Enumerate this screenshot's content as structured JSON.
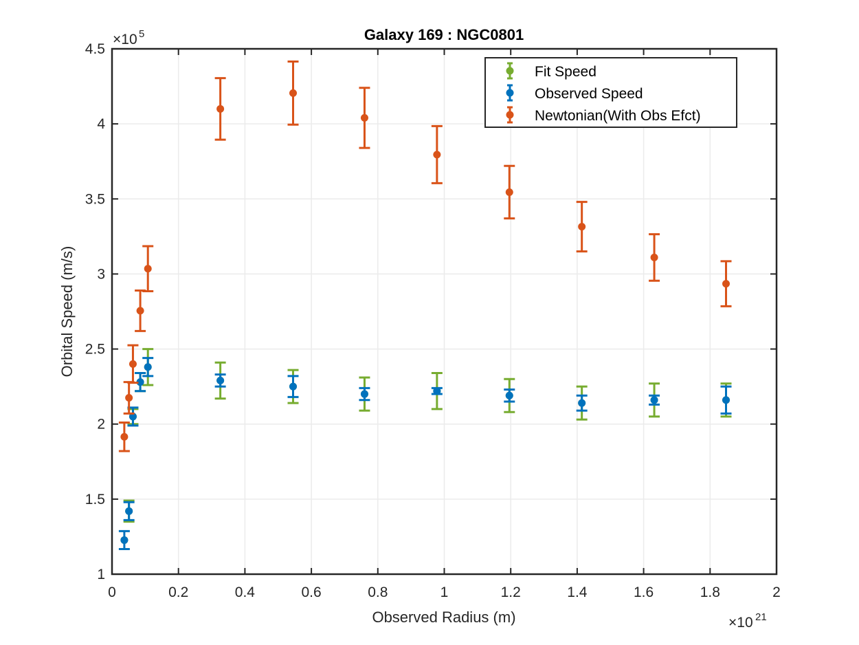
{
  "chart_data": {
    "type": "scatter",
    "title": "Galaxy 169 : NGC0801",
    "xlabel": "Observed Radius (m)",
    "ylabel": "Orbital Speed (m/s)",
    "x_multiplier": {
      "base": "×10",
      "exp": "21"
    },
    "y_multiplier": {
      "base": "×10",
      "exp": "5"
    },
    "xlim": [
      0,
      2
    ],
    "ylim": [
      1,
      4.5
    ],
    "x_ticks": [
      0,
      0.2,
      0.4,
      0.6,
      0.8,
      1,
      1.2,
      1.4,
      1.6,
      1.8,
      2
    ],
    "x_tick_labels": [
      "0",
      "0.2",
      "0.4",
      "0.6",
      "0.8",
      "1",
      "1.2",
      "1.4",
      "1.6",
      "1.8",
      "2"
    ],
    "y_ticks": [
      1,
      1.5,
      2,
      2.5,
      3,
      3.5,
      4,
      4.5
    ],
    "y_tick_labels": [
      "1",
      "1.5",
      "2",
      "2.5",
      "3",
      "3.5",
      "4",
      "4.5"
    ],
    "grid": true,
    "legend_position": "top-right",
    "series": [
      {
        "name": "Fit Speed",
        "color": "#77AC30",
        "x": [
          0.037,
          0.051,
          0.063,
          0.085,
          0.108,
          0.326,
          0.545,
          0.76,
          0.978,
          1.196,
          1.414,
          1.632,
          1.848
        ],
        "y": [
          1.227,
          1.42,
          2.05,
          2.28,
          2.38,
          2.29,
          2.25,
          2.2,
          2.22,
          2.19,
          2.14,
          2.16,
          2.16
        ],
        "err": [
          0.0,
          0.07,
          0.05,
          0.06,
          0.12,
          0.12,
          0.11,
          0.11,
          0.12,
          0.11,
          0.11,
          0.11,
          0.11
        ]
      },
      {
        "name": "Observed Speed",
        "color": "#0072BD",
        "x": [
          0.037,
          0.051,
          0.063,
          0.085,
          0.108,
          0.326,
          0.545,
          0.76,
          0.978,
          1.196,
          1.414,
          1.632,
          1.848
        ],
        "y": [
          1.227,
          1.42,
          2.05,
          2.28,
          2.38,
          2.29,
          2.25,
          2.2,
          2.22,
          2.19,
          2.14,
          2.16,
          2.16
        ],
        "err": [
          0.06,
          0.06,
          0.06,
          0.06,
          0.06,
          0.04,
          0.07,
          0.04,
          0.02,
          0.04,
          0.05,
          0.03,
          0.09
        ]
      },
      {
        "name": "Newtonian(With Obs Efct)",
        "color": "#D95319",
        "x": [
          0.037,
          0.051,
          0.063,
          0.085,
          0.108,
          0.326,
          0.545,
          0.76,
          0.978,
          1.196,
          1.414,
          1.632,
          1.848
        ],
        "y": [
          1.915,
          2.175,
          2.4,
          2.755,
          3.035,
          4.1,
          4.205,
          4.04,
          3.795,
          3.545,
          3.315,
          3.11,
          2.935
        ],
        "err": [
          0.095,
          0.105,
          0.125,
          0.135,
          0.15,
          0.205,
          0.21,
          0.2,
          0.19,
          0.175,
          0.165,
          0.155,
          0.15
        ]
      }
    ]
  }
}
